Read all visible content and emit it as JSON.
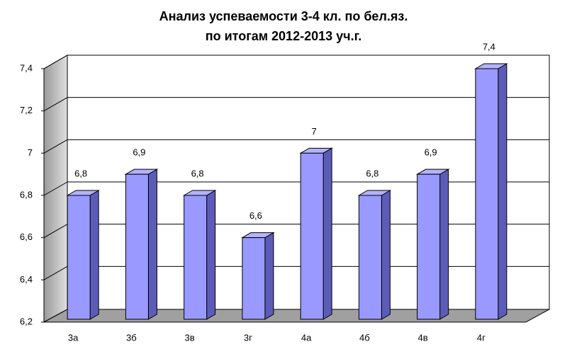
{
  "chart_data": {
    "type": "bar3d",
    "title": [
      "Анализ успеваемости 3-4 кл. по бел.яз.",
      "по итогам 2012-2013 уч.г."
    ],
    "categories": [
      "3а",
      "3б",
      "3в",
      "3г",
      "4а",
      "4б",
      "4в",
      "4г"
    ],
    "values": [
      6.8,
      6.9,
      6.8,
      6.6,
      7,
      6.8,
      6.9,
      7.4
    ],
    "value_labels": [
      "6,8",
      "6,9",
      "6,8",
      "6,6",
      "7",
      "6,8",
      "6,9",
      "7,4"
    ],
    "color": "#9999ff",
    "ylim": [
      6.2,
      7.4
    ],
    "yticks": [
      {
        "value": 6.2,
        "label": "6,2"
      },
      {
        "value": 6.4,
        "label": "6,4"
      },
      {
        "value": 6.6,
        "label": "6,6"
      },
      {
        "value": 6.8,
        "label": "6,8"
      },
      7,
      {
        "value": 7.2,
        "label": "7,2"
      },
      {
        "value": 7.4,
        "label": "7,4"
      }
    ],
    "grid": true
  }
}
